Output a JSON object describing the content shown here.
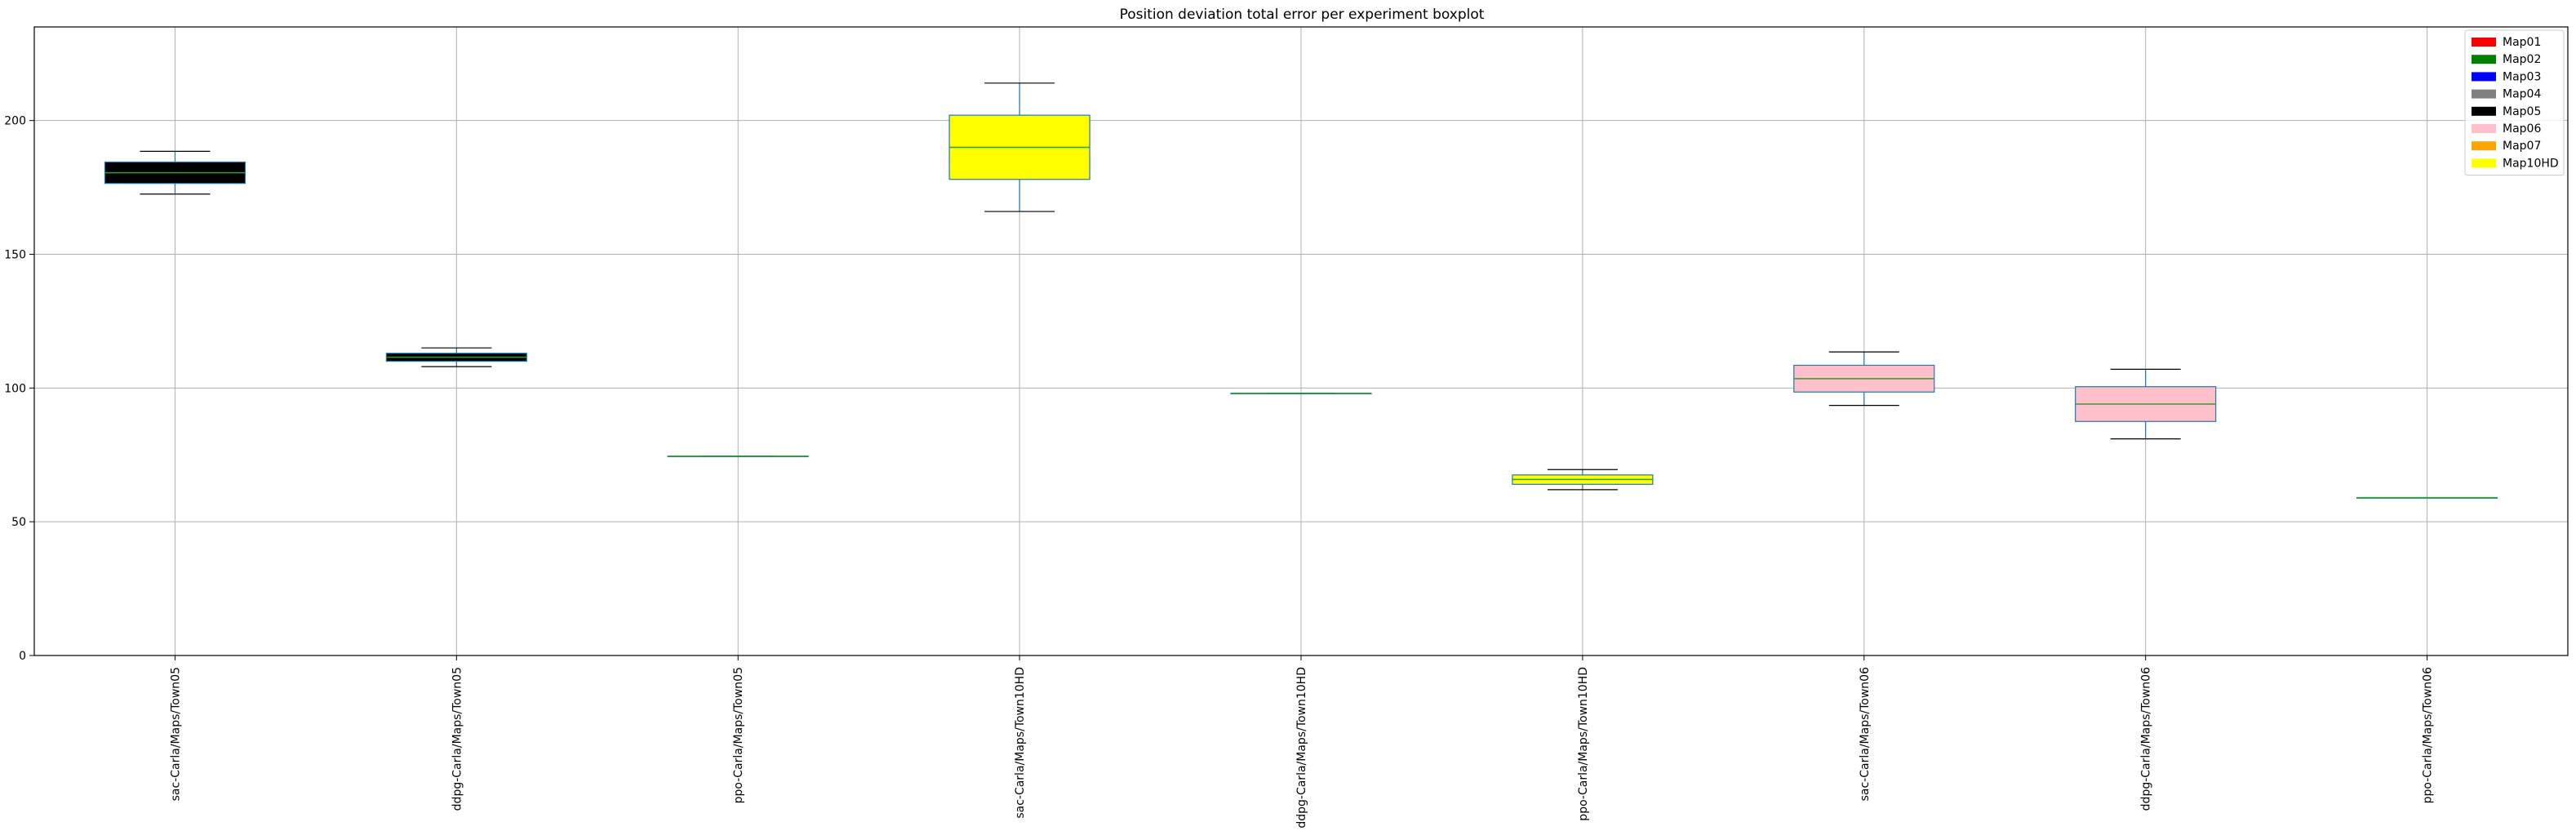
{
  "chart_data": {
    "type": "boxplot",
    "title": "Position deviation total error per experiment boxplot",
    "xlabel": "",
    "ylabel": "",
    "ylim": [
      0,
      235
    ],
    "yticks": [
      0,
      50,
      100,
      150,
      200
    ],
    "grid": true,
    "legend_position": "top-right",
    "categories": [
      "sac-Carla/Maps/Town05",
      "ddpg-Carla/Maps/Town05",
      "ppo-Carla/Maps/Town05",
      "sac-Carla/Maps/Town10HD",
      "ddpg-Carla/Maps/Town10HD",
      "ppo-Carla/Maps/Town10HD",
      "sac-Carla/Maps/Town06",
      "ddpg-Carla/Maps/Town06",
      "ppo-Carla/Maps/Town06"
    ],
    "boxes": [
      {
        "min": 172.5,
        "q1": 176.5,
        "median": 180.5,
        "q3": 184.5,
        "max": 188.5,
        "fill": "#000000"
      },
      {
        "min": 108,
        "q1": 110,
        "median": 111.5,
        "q3": 113,
        "max": 115,
        "fill": "#000000"
      },
      {
        "min": 74.5,
        "q1": 74.5,
        "median": 74.5,
        "q3": 74.5,
        "max": 74.5,
        "fill": "#000000"
      },
      {
        "min": 166,
        "q1": 178,
        "median": 190,
        "q3": 202,
        "max": 214,
        "fill": "#ffff00"
      },
      {
        "min": 98,
        "q1": 98,
        "median": 98,
        "q3": 98,
        "max": 98,
        "fill": "#ffff00"
      },
      {
        "min": 62,
        "q1": 64,
        "median": 65.8,
        "q3": 67.5,
        "max": 69.5,
        "fill": "#ffff00"
      },
      {
        "min": 93.5,
        "q1": 98.5,
        "median": 103.5,
        "q3": 108.5,
        "max": 113.5,
        "fill": "#ffc0cb"
      },
      {
        "min": 81,
        "q1": 87.5,
        "median": 94,
        "q3": 100.5,
        "max": 107,
        "fill": "#ffc0cb"
      },
      {
        "min": 59,
        "q1": 59,
        "median": 59,
        "q3": 59,
        "max": 59,
        "fill": "#000000"
      }
    ],
    "legend": [
      {
        "label": "Map01",
        "color": "#ff0000"
      },
      {
        "label": "Map02",
        "color": "#008000"
      },
      {
        "label": "Map03",
        "color": "#0000ff"
      },
      {
        "label": "Map04",
        "color": "#808080"
      },
      {
        "label": "Map05",
        "color": "#000000"
      },
      {
        "label": "Map06",
        "color": "#ffc0cb"
      },
      {
        "label": "Map07",
        "color": "#ffa500"
      },
      {
        "label": "Map10HD",
        "color": "#ffff00"
      }
    ],
    "colors": {
      "box_edge": "#1f77b4",
      "median": "#2ca02c",
      "whisker": "#1f77b4",
      "cap": "#000000",
      "grid": "#b0b0b0"
    }
  }
}
